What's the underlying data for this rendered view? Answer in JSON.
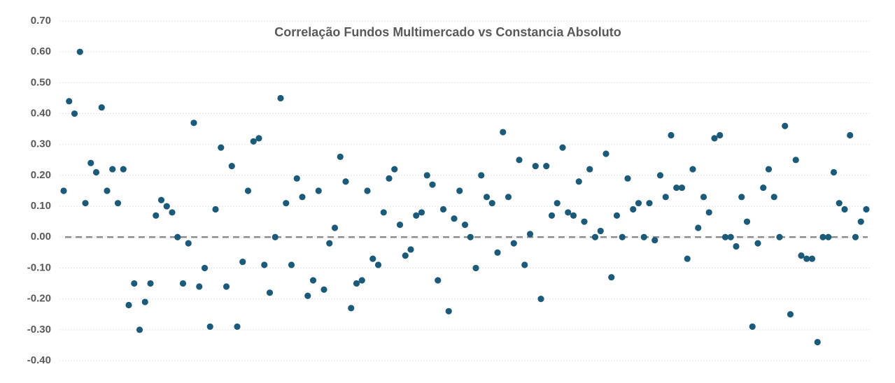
{
  "chart_data": {
    "type": "scatter",
    "title": "Correlação Fundos Multimercado vs Constancia Absoluto",
    "color": "#1b5a78",
    "grid": true,
    "reference_line": 0,
    "ylim": [
      -0.4,
      0.7
    ],
    "yticks": [
      {
        "value": -0.4,
        "label": "-0.40"
      },
      {
        "value": -0.3,
        "label": "-0.30"
      },
      {
        "value": -0.2,
        "label": "-0.20"
      },
      {
        "value": -0.1,
        "label": "-0.10"
      },
      {
        "value": 0,
        "label": "0.00"
      },
      {
        "value": 0.1,
        "label": "0.10"
      },
      {
        "value": 0.2,
        "label": "0.20"
      },
      {
        "value": 0.3,
        "label": "0.30"
      },
      {
        "value": 0.4,
        "label": "0.40"
      },
      {
        "value": 0.5,
        "label": "0.50"
      },
      {
        "value": 0.6,
        "label": "0.60"
      },
      {
        "value": 0.7,
        "label": "0.70"
      }
    ],
    "values": [
      0.15,
      0.44,
      0.4,
      0.6,
      0.11,
      0.24,
      0.21,
      0.42,
      0.15,
      0.22,
      0.11,
      0.22,
      -0.22,
      -0.15,
      -0.3,
      -0.21,
      -0.15,
      0.07,
      0.12,
      0.1,
      0.08,
      0.0,
      -0.15,
      -0.02,
      0.37,
      -0.16,
      -0.1,
      -0.29,
      0.09,
      0.29,
      -0.16,
      0.23,
      -0.29,
      -0.08,
      0.15,
      0.31,
      0.32,
      -0.09,
      -0.18,
      0.0,
      0.45,
      0.11,
      -0.09,
      0.19,
      0.13,
      -0.19,
      -0.14,
      0.15,
      -0.17,
      -0.02,
      0.03,
      0.26,
      0.18,
      -0.23,
      -0.15,
      -0.14,
      0.15,
      -0.07,
      -0.09,
      0.08,
      0.19,
      0.22,
      0.04,
      -0.06,
      -0.04,
      0.07,
      0.08,
      0.2,
      0.17,
      -0.14,
      0.09,
      -0.24,
      0.06,
      0.15,
      0.04,
      0.0,
      -0.1,
      0.2,
      0.13,
      0.11,
      -0.05,
      0.34,
      0.13,
      -0.02,
      0.25,
      -0.09,
      0.01,
      0.23,
      -0.2,
      0.23,
      0.07,
      0.11,
      0.29,
      0.08,
      0.07,
      0.18,
      0.05,
      0.22,
      0.0,
      0.02,
      0.27,
      -0.13,
      0.07,
      0.0,
      0.19,
      0.09,
      0.11,
      0.0,
      0.11,
      -0.01,
      0.2,
      0.13,
      0.33,
      0.16,
      0.16,
      -0.07,
      0.22,
      0.03,
      0.13,
      0.08,
      0.32,
      0.33,
      0.0,
      0.0,
      -0.03,
      0.13,
      0.05,
      -0.29,
      -0.02,
      0.16,
      0.22,
      0.13,
      0.0,
      0.36,
      -0.25,
      0.25,
      -0.06,
      -0.07,
      -0.07,
      -0.34,
      0.0,
      0.0,
      0.21,
      0.11,
      0.09,
      0.33,
      0.0,
      0.05,
      0.09
    ]
  }
}
